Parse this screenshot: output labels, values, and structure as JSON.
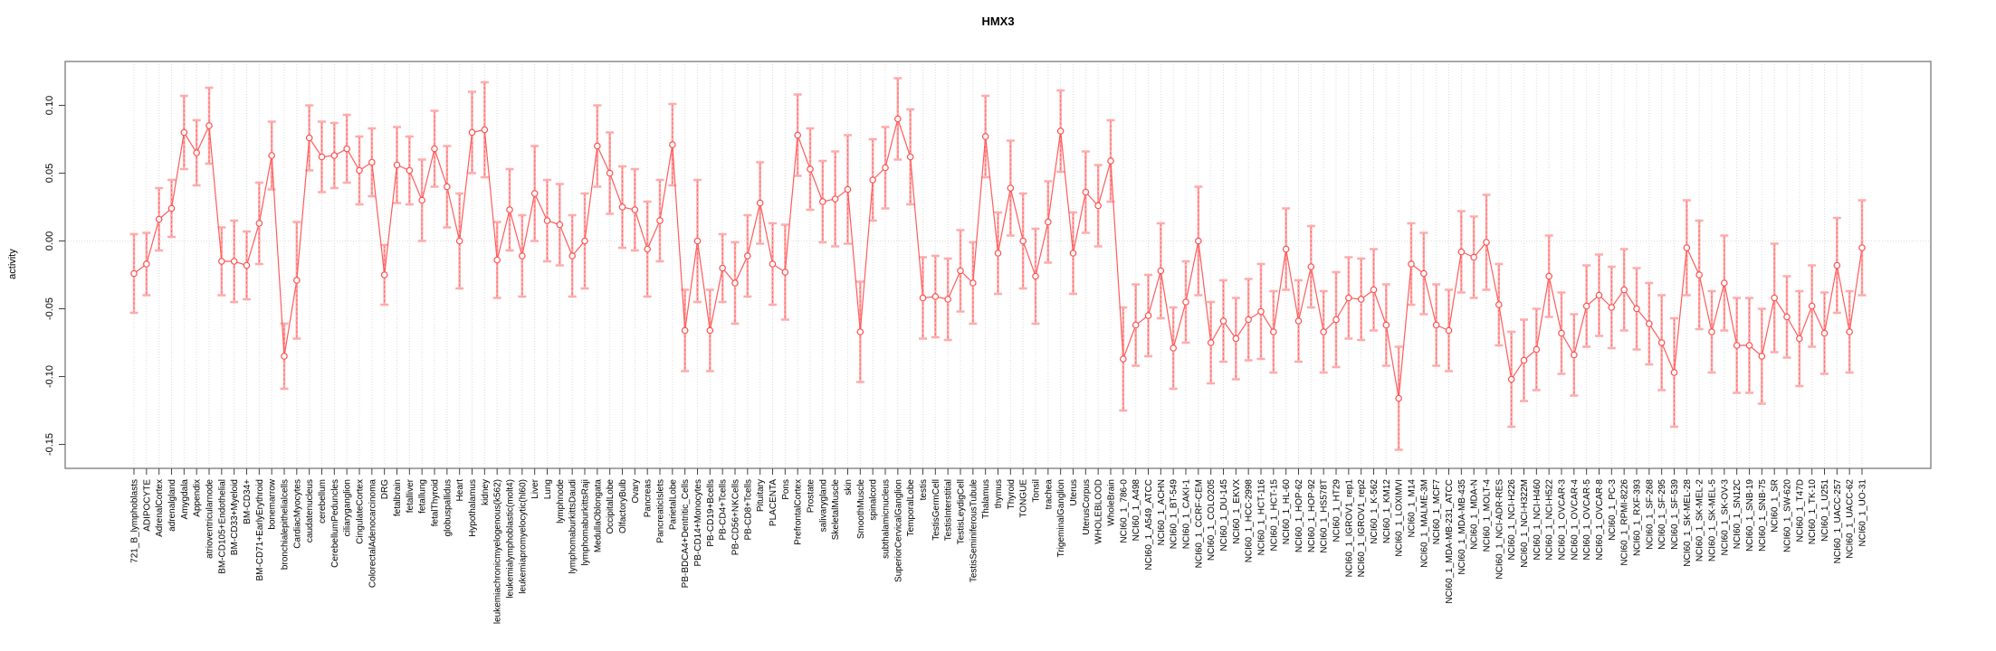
{
  "chart_data": {
    "type": "line",
    "subtype": "points-with-error-bars",
    "title": "HMX3",
    "xlabel": "",
    "ylabel": "activity",
    "ylim": [
      -0.159,
      0.136
    ],
    "yticks": [
      0.1,
      0.05,
      0.0,
      -0.05,
      -0.1,
      -0.15
    ],
    "grid": {
      "vertical_category_gridlines": "dotted",
      "zero_line": "dotted",
      "horizontal_gridlines": "off"
    },
    "legend_position": "none",
    "point_color": "#ff4d4d",
    "line_color": "#ff5c5c",
    "errorbar_color": "#ffabab",
    "border_color": "#8c8c8c",
    "gridline_color": "#dcdcdc",
    "categories": [
      "721_B_lymphoblasts",
      "ADIPOCYTE",
      "AdrenalCortex",
      "adrenalgland",
      "Amygdala",
      "Appendix",
      "atrioventricularnode",
      "BM-CD105+Endothelial",
      "BM-CD33+Myeloid",
      "BM-CD34+",
      "BM-CD71+EarlyErythroid",
      "bonemarrow",
      "bronchialepithelialcells",
      "CardiacMyocytes",
      "caudatenucleus",
      "cerebellum",
      "CerebellumPeduncles",
      "ciliaryganglion",
      "CingulateCortex",
      "ColorectalAdenocarcinoma",
      "DRG",
      "fetalbrain",
      "fetalliver",
      "fetallung",
      "fetalThyroid",
      "globuspallidus",
      "Heart",
      "Hypothalamus",
      "kidney",
      "leukemiachronicmyelogenous(k562)",
      "leukemialymphoblastic(molt4)",
      "leukemiapromyelocytic(hl60)",
      "Liver",
      "Lung",
      "lymphnode",
      "lymphomaburkittsDaudi",
      "lymphomaburkittsRaji",
      "MedullaOblongata",
      "OccipitalLobe",
      "OlfactoryBulb",
      "Ovary",
      "Pancreas",
      "PancreaticIslets",
      "ParietalLobe",
      "PB-BDCA4+Dentritic_Cells",
      "PB-CD14+Monocytes",
      "PB-CD19+Bcells",
      "PB-CD4+Tcells",
      "PB-CD56+NKCells",
      "PB-CD8+Tcells",
      "Pituitary",
      "PLACENTA",
      "Pons",
      "PrefrontalCortex",
      "Prostate",
      "salivarygland",
      "SkeletalMuscle",
      "skin",
      "SmoothMuscle",
      "spinalcord",
      "subthalamicnucleus",
      "SuperiorCervicalGanglion",
      "TemporalLobe",
      "testis",
      "TestisGermCell",
      "TestisInterstitial",
      "TestisLeydigCell",
      "TestisSeminiferousTubule",
      "Thalamus",
      "thymus",
      "Thyroid",
      "TONGUE",
      "Tonsil",
      "trachea",
      "TrigeminalGanglion",
      "Uterus",
      "UterusCorpus",
      "WHOLEBLOOD",
      "WholeBrain",
      "NCI60_1_786-0",
      "NCI60_1_A498",
      "NCI60_1_A549_ATCC",
      "NCI60_1_ACHN",
      "NCI60_1_BT-549",
      "NCI60_1_CAKI-1",
      "NCI60_1_CCRF-CEM",
      "NCI60_1_COLO205",
      "NCI60_1_DU-145",
      "NCI60_1_EKVX",
      "NCI60_1_HCC-2998",
      "NCI60_1_HCT-116",
      "NCI60_1_HCT-15",
      "NCI60_1_HL-60",
      "NCI60_1_HOP-62",
      "NCI60_1_HOP-92",
      "NCI60_1_HS578T",
      "NCI60_1_HT29",
      "NCI60_1_IGROV1_rep1",
      "NCI60_1_IGROV1_rep2",
      "NCI60_1_K-562",
      "NCI60_1_KM12",
      "NCI60_1_LOXIMVI",
      "NCI60_1_M14",
      "NCI60_1_MALME-3M",
      "NCI60_1_MCF7",
      "NCI60_1_MDA-MB-231_ATCC",
      "NCI60_1_MDA-MB-435",
      "NCI60_1_MDA-N",
      "NCI60_1_MOLT-4",
      "NCI60_1_NCI-ADR-RES",
      "NCI60_1_NCI-H226",
      "NCI60_1_NCI-H322M",
      "NCI60_1_NCI-H460",
      "NCI60_1_NCI-H522",
      "NCI60_1_OVCAR-3",
      "NCI60_1_OVCAR-4",
      "NCI60_1_OVCAR-5",
      "NCI60_1_OVCAR-8",
      "NCI60_1_PC-3",
      "NCI60_1_RPMI-8226",
      "NCI60_1_RXF-393",
      "NCI60_1_SF-268",
      "NCI60_1_SF-295",
      "NCI60_1_SF-539",
      "NCI60_1_SK-MEL-28",
      "NCI60_1_SK-MEL-2",
      "NCI60_1_SK-MEL-5",
      "NCI60_1_SK-OV-3",
      "NCI60_1_SN12C",
      "NCI60_1_SNB-19",
      "NCI60_1_SNB-75",
      "NCI60_1_SR",
      "NCI60_1_SW-620",
      "NCI60_1_T47D",
      "NCI60_1_TK-10",
      "NCI60_1_U251",
      "NCI60_1_UACC-257",
      "NCI60_1_UACC-62",
      "NCI60_1_UO-31"
    ],
    "values": [
      -0.024,
      -0.017,
      0.016,
      0.024,
      0.08,
      0.065,
      0.085,
      -0.015,
      -0.015,
      -0.018,
      0.013,
      0.063,
      -0.085,
      -0.029,
      0.076,
      0.062,
      0.063,
      0.068,
      0.052,
      0.058,
      -0.025,
      0.056,
      0.052,
      0.03,
      0.068,
      0.04,
      0.0,
      0.08,
      0.082,
      -0.014,
      0.023,
      -0.011,
      0.035,
      0.015,
      0.012,
      -0.011,
      0.0,
      0.07,
      0.05,
      0.025,
      0.023,
      -0.006,
      0.015,
      0.071,
      -0.066,
      0.0,
      -0.066,
      -0.02,
      -0.031,
      -0.011,
      0.028,
      -0.017,
      -0.023,
      0.078,
      0.053,
      0.029,
      0.031,
      0.038,
      -0.067,
      0.045,
      0.054,
      0.09,
      0.062,
      -0.042,
      -0.041,
      -0.043,
      -0.022,
      -0.031,
      0.077,
      -0.009,
      0.039,
      0.0,
      -0.026,
      0.014,
      0.081,
      -0.009,
      0.036,
      0.026,
      0.059,
      -0.087,
      -0.062,
      -0.055,
      -0.022,
      -0.079,
      -0.045,
      0.0,
      -0.075,
      -0.059,
      -0.072,
      -0.058,
      -0.052,
      -0.067,
      -0.006,
      -0.059,
      -0.019,
      -0.067,
      -0.058,
      -0.042,
      -0.043,
      -0.036,
      -0.062,
      -0.116,
      -0.017,
      -0.024,
      -0.062,
      -0.066,
      -0.008,
      -0.012,
      -0.001,
      -0.047,
      -0.102,
      -0.088,
      -0.08,
      -0.026,
      -0.068,
      -0.084,
      -0.048,
      -0.04,
      -0.049,
      -0.036,
      -0.05,
      -0.061,
      -0.075,
      -0.097,
      -0.005,
      -0.025,
      -0.067,
      -0.031,
      -0.077,
      -0.077,
      -0.085,
      -0.042,
      -0.056,
      -0.072,
      -0.048,
      -0.068,
      -0.018,
      -0.067,
      -0.005
    ],
    "errors": [
      0.029,
      0.023,
      0.023,
      0.021,
      0.027,
      0.024,
      0.028,
      0.025,
      0.03,
      0.025,
      0.03,
      0.025,
      0.024,
      0.043,
      0.024,
      0.026,
      0.024,
      0.025,
      0.025,
      0.025,
      0.022,
      0.028,
      0.025,
      0.03,
      0.028,
      0.03,
      0.035,
      0.03,
      0.035,
      0.028,
      0.03,
      0.03,
      0.035,
      0.03,
      0.03,
      0.03,
      0.035,
      0.03,
      0.03,
      0.03,
      0.03,
      0.035,
      0.03,
      0.03,
      0.03,
      0.045,
      0.03,
      0.025,
      0.03,
      0.03,
      0.03,
      0.03,
      0.035,
      0.03,
      0.03,
      0.03,
      0.035,
      0.04,
      0.037,
      0.03,
      0.03,
      0.03,
      0.035,
      0.03,
      0.03,
      0.03,
      0.03,
      0.03,
      0.03,
      0.03,
      0.035,
      0.035,
      0.035,
      0.03,
      0.03,
      0.03,
      0.03,
      0.03,
      0.03,
      0.038,
      0.03,
      0.03,
      0.035,
      0.03,
      0.03,
      0.04,
      0.03,
      0.03,
      0.03,
      0.03,
      0.035,
      0.03,
      0.03,
      0.03,
      0.03,
      0.03,
      0.035,
      0.03,
      0.03,
      0.03,
      0.03,
      0.038,
      0.03,
      0.03,
      0.03,
      0.03,
      0.03,
      0.03,
      0.035,
      0.03,
      0.035,
      0.03,
      0.03,
      0.03,
      0.03,
      0.03,
      0.03,
      0.03,
      0.03,
      0.03,
      0.03,
      0.03,
      0.035,
      0.04,
      0.035,
      0.04,
      0.03,
      0.035,
      0.035,
      0.035,
      0.035,
      0.04,
      0.03,
      0.035,
      0.03,
      0.03,
      0.035,
      0.03,
      0.035
    ]
  }
}
